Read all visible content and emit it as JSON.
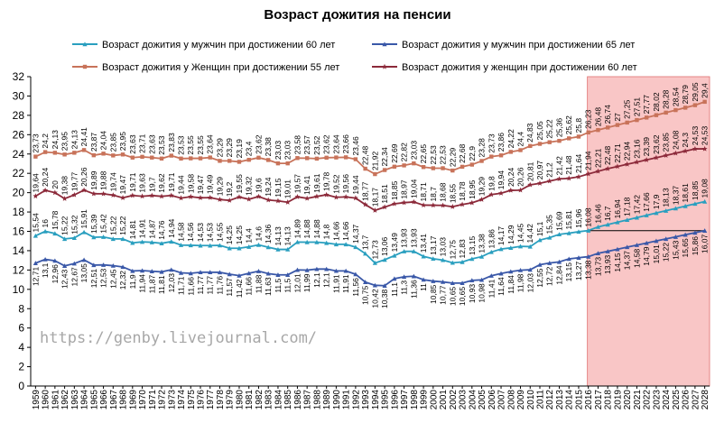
{
  "chart_data": {
    "type": "line",
    "title": "Возраст дожития на пенсии",
    "xlabel": "",
    "ylabel": "",
    "ylim": [
      0,
      32
    ],
    "yticks": [
      0,
      2,
      4,
      6,
      8,
      10,
      12,
      14,
      16,
      18,
      20,
      22,
      24,
      26,
      28,
      30,
      32
    ],
    "grid": false,
    "legend_position": "top",
    "watermark": "https://genby.livejournal.com/",
    "forecast_region": {
      "from": "2016",
      "to": "2028",
      "color": "#f9c6c6"
    },
    "reference_line": {
      "value": 16.07,
      "from": "2016",
      "to": "2028"
    },
    "categories": [
      "1959",
      "1960",
      "1961",
      "1962",
      "1963",
      "1964",
      "1965",
      "1966",
      "1967",
      "1968",
      "1969",
      "1970",
      "1971",
      "1972",
      "1973",
      "1974",
      "1975",
      "1976",
      "1977",
      "1978",
      "1979",
      "1980",
      "1981",
      "1982",
      "1983",
      "1984",
      "1985",
      "1986",
      "1987",
      "1988",
      "1989",
      "1990",
      "1991",
      "1992",
      "1993",
      "1994",
      "1995",
      "1996",
      "1997",
      "1998",
      "1999",
      "2000",
      "2001",
      "2002",
      "2003",
      "2004",
      "2005",
      "2006",
      "2007",
      "2008",
      "2009",
      "2010",
      "2011",
      "2012",
      "2013",
      "2014",
      "2015",
      "2016",
      "2017",
      "2018",
      "2019",
      "2020",
      "2021",
      "2022",
      "2023",
      "2024",
      "2025",
      "2026",
      "2027",
      "2028"
    ],
    "series": [
      {
        "name": "Возраст дожития  у мужчин  при достижении  60 лет",
        "color": "#2a9fbf",
        "marker": "triangle",
        "values": [
          15.54,
          16.0,
          15.78,
          15.22,
          15.32,
          15.91,
          15.39,
          15.42,
          15.22,
          15.22,
          14.81,
          14.91,
          14.87,
          14.76,
          14.94,
          14.58,
          14.56,
          14.53,
          14.53,
          14.55,
          14.25,
          14.25,
          14.4,
          14.6,
          14.36,
          14.13,
          14.13,
          14.89,
          14.88,
          14.88,
          14.8,
          14.66,
          14.66,
          14.37,
          13.7,
          12.73,
          13.06,
          13.49,
          13.93,
          13.93,
          13.41,
          13.17,
          13.03,
          12.75,
          12.83,
          13.15,
          13.38,
          13.86,
          14.17,
          14.29,
          14.45,
          14.42,
          15.1,
          15.35,
          15.69,
          15.81,
          15.96,
          16.08,
          16.46,
          16.7,
          16.94,
          17.18,
          17.42,
          17.66,
          17.9,
          18.13,
          18.37,
          18.61,
          18.85,
          19.08
        ]
      },
      {
        "name": "Возраст дожития  у мужчин  при достижении  65 лет",
        "color": "#3a58a8",
        "marker": "triangle",
        "values": [
          12.71,
          13.1,
          12.96,
          12.43,
          12.67,
          13.05,
          12.51,
          12.53,
          12.45,
          12.32,
          11.9,
          11.94,
          11.87,
          11.81,
          12.03,
          11.71,
          11.66,
          11.77,
          11.77,
          11.76,
          11.57,
          11.42,
          11.66,
          11.88,
          11.63,
          11.5,
          11.5,
          12.01,
          11.99,
          12.1,
          12.1,
          11.91,
          11.91,
          11.56,
          10.75,
          10.42,
          10.38,
          11.1,
          11.3,
          11.36,
          11.0,
          10.85,
          10.77,
          10.65,
          10.65,
          10.93,
          10.98,
          11.41,
          11.64,
          11.84,
          11.98,
          12.03,
          12.55,
          12.72,
          12.84,
          13.15,
          13.27,
          13.38,
          13.73,
          13.93,
          14.15,
          14.37,
          14.58,
          14.79,
          15.01,
          15.22,
          15.43,
          15.65,
          15.86,
          16.07
        ]
      },
      {
        "name": "Возраст дожития  у Женщин  при достижении  55 лет",
        "color": "#c8735a",
        "marker": "square",
        "values": [
          23.73,
          24.2,
          24.13,
          23.95,
          24.13,
          24.41,
          23.87,
          24.04,
          23.85,
          23.95,
          23.63,
          23.71,
          23.63,
          23.53,
          23.83,
          23.53,
          23.55,
          23.55,
          23.64,
          23.29,
          23.29,
          23.19,
          23.4,
          23.62,
          23.38,
          23.03,
          23.03,
          23.58,
          23.57,
          23.52,
          23.62,
          23.64,
          23.66,
          23.46,
          22.48,
          21.92,
          22.34,
          22.69,
          22.82,
          23.03,
          22.65,
          22.53,
          22.53,
          22.29,
          22.68,
          22.9,
          23.28,
          23.73,
          23.86,
          24.22,
          24.4,
          24.83,
          25.05,
          25.22,
          25.36,
          25.62,
          25.8,
          26.23,
          26.48,
          26.74,
          27.0,
          27.25,
          27.51,
          27.77,
          28.02,
          28.28,
          28.54,
          28.79,
          29.05,
          29.4
        ]
      },
      {
        "name": "Возраст дожития  у женщин  при достижении  60 лет",
        "color": "#8c2a3a",
        "marker": "star",
        "values": [
          19.64,
          20.24,
          20.0,
          19.38,
          19.77,
          20.26,
          19.89,
          19.88,
          19.74,
          19.47,
          19.71,
          19.63,
          19.7,
          19.62,
          19.71,
          19.44,
          19.58,
          19.47,
          19.49,
          19.29,
          19.2,
          19.55,
          19.32,
          19.6,
          19.24,
          19.15,
          19.01,
          19.57,
          19.41,
          19.61,
          19.78,
          19.52,
          19.56,
          19.44,
          18.77,
          18.17,
          18.51,
          18.85,
          18.97,
          19.04,
          18.71,
          18.7,
          18.68,
          18.55,
          18.78,
          18.95,
          19.29,
          19.8,
          19.94,
          20.24,
          20.26,
          20.81,
          20.97,
          21.2,
          21.42,
          21.48,
          21.64,
          21.94,
          22.21,
          22.48,
          22.71,
          22.94,
          23.16,
          23.39,
          23.62,
          23.85,
          24.08,
          24.3,
          24.53,
          24.53
        ]
      }
    ]
  }
}
